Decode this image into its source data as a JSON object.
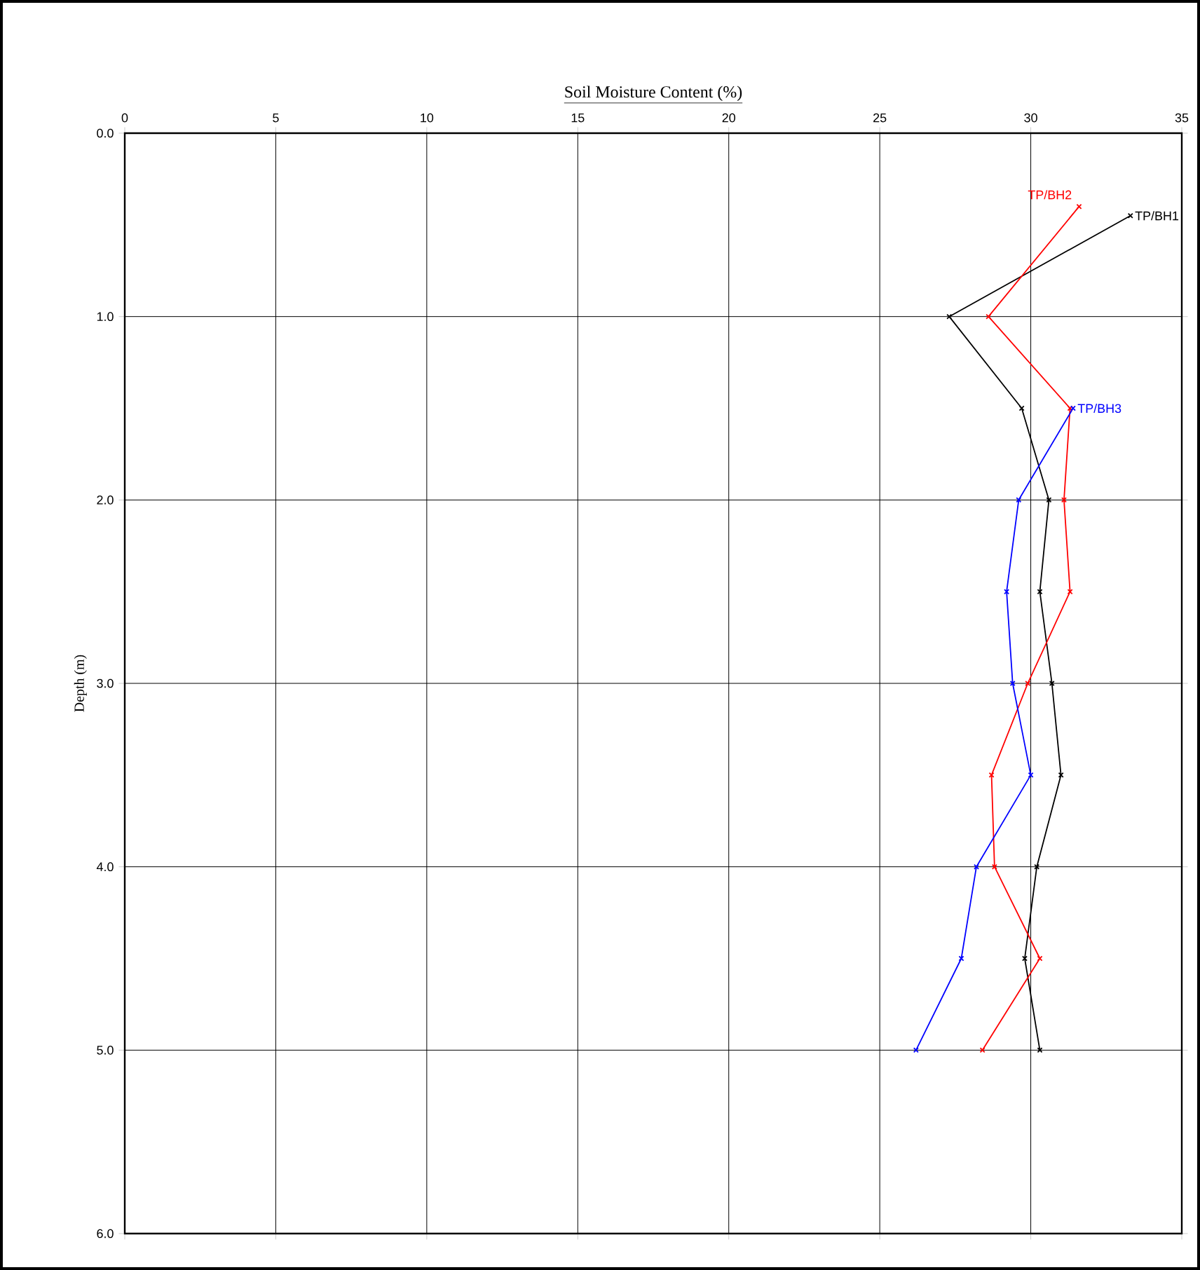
{
  "chart_data": {
    "type": "line",
    "xlabel": "Soil Moisture Content (%)",
    "ylabel": "Depth (m)",
    "xlim": [
      0,
      35
    ],
    "xticks": [
      0,
      5,
      10,
      15,
      20,
      25,
      30,
      35
    ],
    "ylim": [
      6,
      0
    ],
    "yticks": [
      {
        "value": 0,
        "label": "0.0"
      },
      {
        "value": 1,
        "label": "1.0"
      },
      {
        "value": 2,
        "label": "2.0"
      },
      {
        "value": 3,
        "label": "3.0"
      },
      {
        "value": 4,
        "label": "4.0"
      },
      {
        "value": 5,
        "label": "5.0"
      },
      {
        "value": 6,
        "label": "6.0"
      }
    ],
    "grid": true,
    "marker": "cross",
    "line_style": "solid",
    "series": [
      {
        "name": "TP/BH1",
        "color": "#000000",
        "x": [
          33.3,
          27.3,
          29.7,
          30.6,
          30.3,
          30.7,
          31.0,
          30.2,
          29.8,
          30.3
        ],
        "values": [
          0.45,
          1.0,
          1.5,
          2.0,
          2.5,
          3.0,
          3.5,
          4.0,
          4.5,
          5.0
        ]
      },
      {
        "name": "TP/BH2",
        "color": "#ff0000",
        "x": [
          31.6,
          28.6,
          31.3,
          31.1,
          31.3,
          29.9,
          28.7,
          28.8,
          30.3,
          28.4
        ],
        "values": [
          0.4,
          1.0,
          1.5,
          2.0,
          2.5,
          3.0,
          3.5,
          4.0,
          4.5,
          5.0
        ]
      },
      {
        "name": "TP/BH3",
        "color": "#0000ff",
        "x": [
          31.4,
          29.6,
          29.2,
          29.4,
          30.0,
          28.2,
          27.7,
          26.2
        ],
        "values": [
          1.5,
          2.0,
          2.5,
          3.0,
          3.5,
          4.0,
          4.5,
          5.0
        ]
      }
    ]
  }
}
